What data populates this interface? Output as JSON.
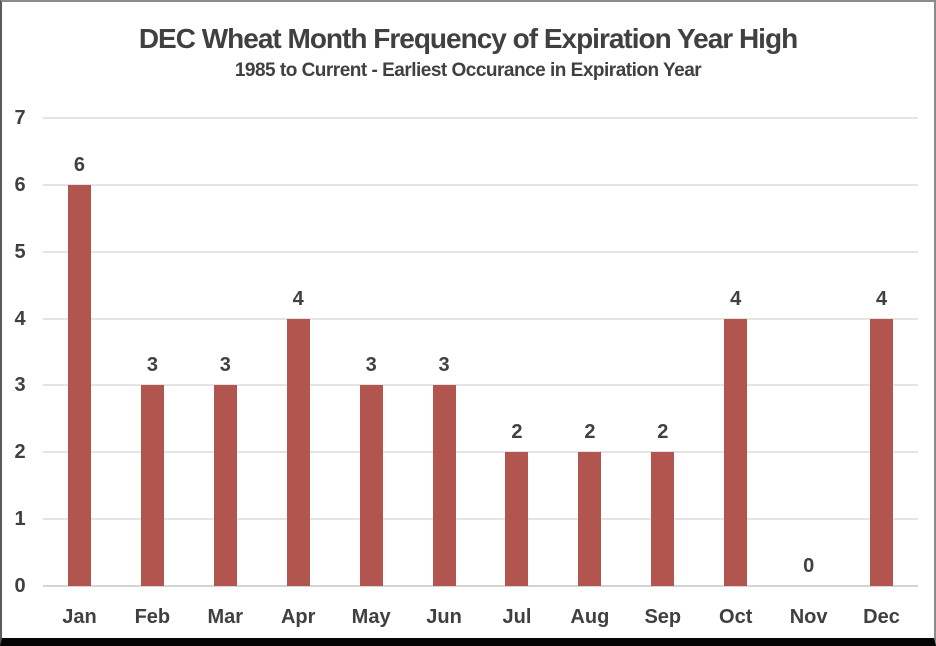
{
  "chart_data": {
    "type": "bar",
    "title": "DEC Wheat Month Frequency of Expiration Year High",
    "subtitle": "1985 to Current - Earliest Occurance in Expiration Year",
    "categories": [
      "Jan",
      "Feb",
      "Mar",
      "Apr",
      "May",
      "Jun",
      "Jul",
      "Aug",
      "Sep",
      "Oct",
      "Nov",
      "Dec"
    ],
    "values": [
      6,
      3,
      3,
      4,
      3,
      3,
      2,
      2,
      2,
      4,
      0,
      4
    ],
    "yticks": [
      0,
      1,
      2,
      3,
      4,
      5,
      6,
      7
    ],
    "ylim": [
      0,
      7
    ],
    "ytick_step": 1,
    "xlabel": "",
    "ylabel": "",
    "grid": true,
    "legend": false,
    "data_labels": true,
    "colors": {
      "bar": "#B2554F",
      "text": "#404040",
      "gridline": "#E4E4E4",
      "axis_line": "#D4D4D4",
      "frame_border": "#8C8C8C",
      "bottom_border": "#050505",
      "background": "#FFFFFF"
    }
  }
}
